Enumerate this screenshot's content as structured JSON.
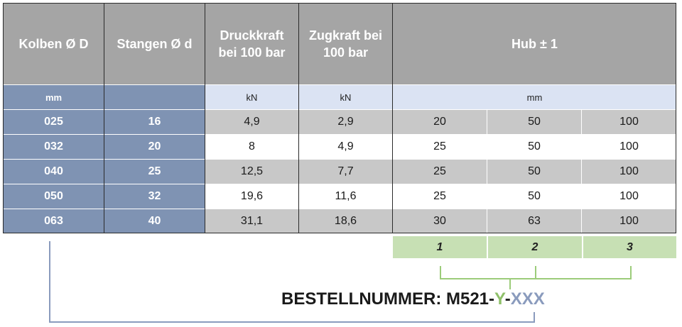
{
  "headers": {
    "kolben": "Kolben Ø D",
    "stangen": "Stangen Ø d",
    "druck_line1": "Druckkraft",
    "druck_line2": "bei 100 bar",
    "zug_line1": "Zugkraft bei",
    "zug_line2": "100 bar",
    "hub": "Hub ± 1"
  },
  "units": {
    "kolben": "mm",
    "stangen": "",
    "druck": "kN",
    "zug": "kN",
    "hub": "mm"
  },
  "rows": [
    {
      "kolben": "025",
      "stangen": "16",
      "druck": "4,9",
      "zug": "2,9",
      "hub1": "20",
      "hub2": "50",
      "hub3": "100"
    },
    {
      "kolben": "032",
      "stangen": "20",
      "druck": "8",
      "zug": "4,9",
      "hub1": "25",
      "hub2": "50",
      "hub3": "100"
    },
    {
      "kolben": "040",
      "stangen": "25",
      "druck": "12,5",
      "zug": "7,7",
      "hub1": "25",
      "hub2": "50",
      "hub3": "100"
    },
    {
      "kolben": "050",
      "stangen": "32",
      "druck": "19,6",
      "zug": "11,6",
      "hub1": "25",
      "hub2": "50",
      "hub3": "100"
    },
    {
      "kolben": "063",
      "stangen": "40",
      "druck": "31,1",
      "zug": "18,6",
      "hub1": "30",
      "hub2": "63",
      "hub3": "100"
    }
  ],
  "selectors": [
    "1",
    "2",
    "3"
  ],
  "order": {
    "prefix": "BESTELLNUMMER: ",
    "model": "M521",
    "dash1": "-",
    "y": "Y",
    "dash2": "-",
    "xxx": "XXX"
  },
  "colors": {
    "header_gray": "#a5a5a5",
    "key_blue": "#7f93b3",
    "unit_light": "#dbe3f3",
    "selector_green": "#c7e0b4",
    "y_green": "#8fc06a",
    "xxx_blue": "#8a9bbd"
  }
}
